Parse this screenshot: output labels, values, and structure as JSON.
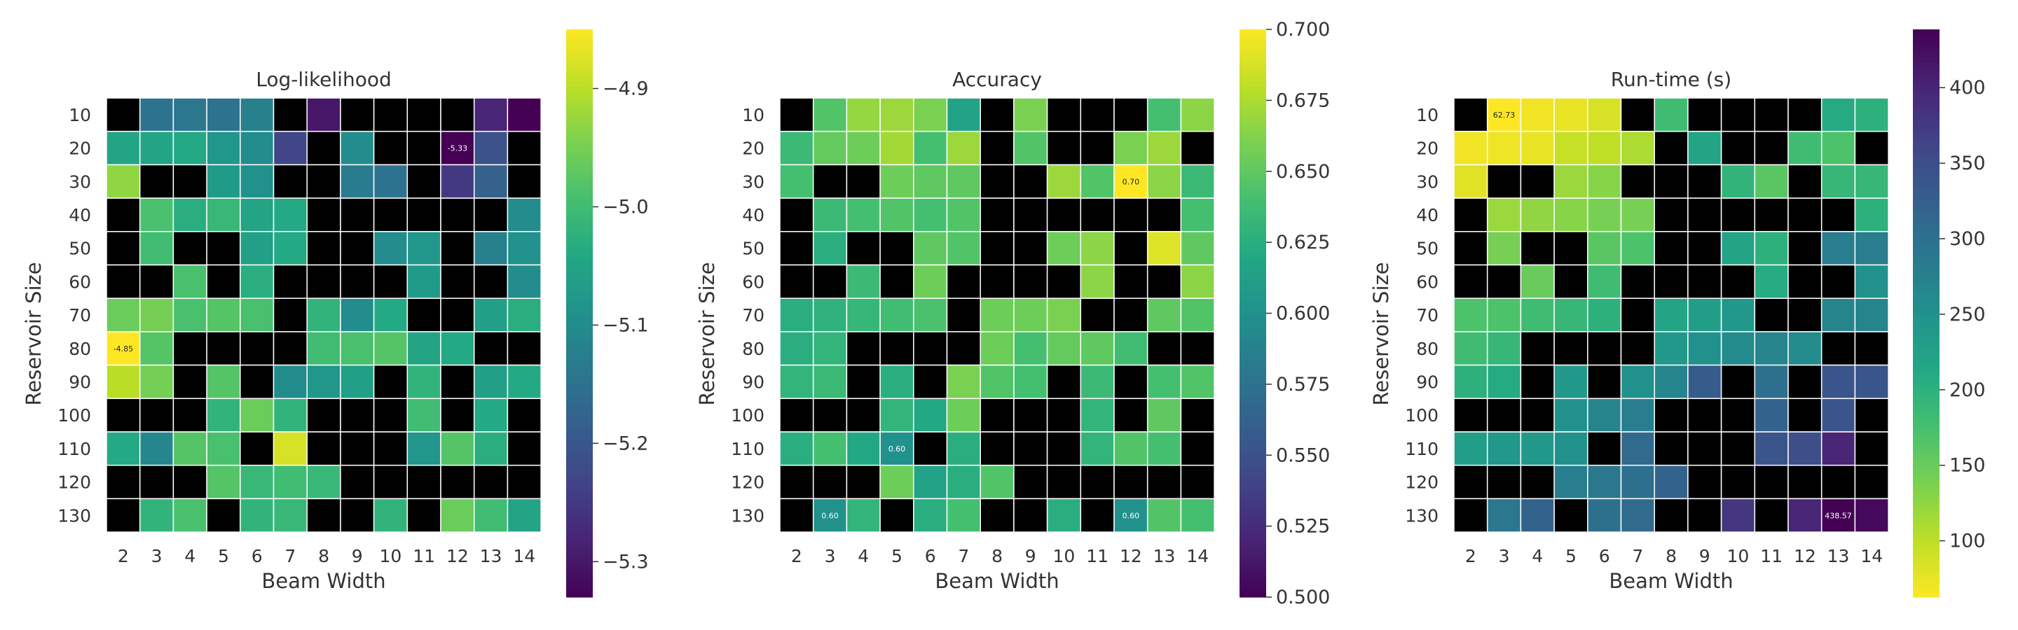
{
  "colors": {
    "missing": "#000000",
    "grid": "#ffffff",
    "viridis": [
      "#440154",
      "#482475",
      "#414487",
      "#355f8d",
      "#2a788e",
      "#21918c",
      "#22a884",
      "#44bf70",
      "#7ad151",
      "#bddf26",
      "#fde725"
    ]
  },
  "chart_data": [
    {
      "type": "heatmap",
      "title": "Log-likelihood",
      "xlabel": "Beam Width",
      "ylabel": "Reservoir Size",
      "x_categories": [
        "2",
        "3",
        "4",
        "5",
        "6",
        "7",
        "8",
        "9",
        "10",
        "11",
        "12",
        "13",
        "14"
      ],
      "y_categories": [
        "10",
        "20",
        "30",
        "40",
        "50",
        "60",
        "70",
        "80",
        "90",
        "100",
        "110",
        "120",
        "130"
      ],
      "colorbar": {
        "min": -5.33,
        "max": -4.85,
        "ticks": [
          -4.9,
          -5.0,
          -5.1,
          -5.2,
          -5.3
        ],
        "tick_labels": [
          "−4.9",
          "−5.0",
          "−5.1",
          "−5.2",
          "−5.3"
        ],
        "reversed": false
      },
      "values": [
        [
          null,
          -5.15,
          -5.14,
          -5.15,
          -5.12,
          null,
          -5.3,
          null,
          null,
          null,
          null,
          -5.28,
          -5.33
        ],
        [
          -5.05,
          -5.05,
          -5.04,
          -5.08,
          -5.1,
          -5.23,
          null,
          -5.1,
          null,
          null,
          -5.33,
          -5.21,
          null
        ],
        [
          -4.93,
          null,
          null,
          -5.07,
          -5.09,
          null,
          null,
          -5.13,
          -5.15,
          null,
          -5.25,
          -5.18,
          null
        ],
        [
          null,
          -4.99,
          -5.03,
          -5.01,
          -5.05,
          -5.04,
          null,
          null,
          null,
          null,
          null,
          null,
          -5.1
        ],
        [
          null,
          -5.0,
          null,
          null,
          -5.06,
          -5.04,
          null,
          null,
          -5.1,
          -5.08,
          null,
          -5.12,
          -5.09
        ],
        [
          null,
          null,
          -4.99,
          null,
          -5.03,
          null,
          null,
          null,
          null,
          -5.07,
          null,
          null,
          -5.1
        ],
        [
          -4.96,
          -4.95,
          -4.99,
          -4.98,
          -4.99,
          null,
          -5.02,
          -5.1,
          -5.04,
          null,
          null,
          -5.06,
          -5.03
        ],
        [
          -4.85,
          -4.98,
          null,
          null,
          null,
          null,
          -5.0,
          -4.99,
          -4.98,
          -5.05,
          -5.04,
          null,
          null
        ],
        [
          -4.9,
          -4.95,
          null,
          -4.98,
          null,
          -5.1,
          -5.08,
          -5.06,
          null,
          -5.02,
          null,
          -5.06,
          -5.04
        ],
        [
          null,
          null,
          null,
          -5.02,
          -4.96,
          -5.02,
          null,
          null,
          null,
          -5.0,
          null,
          -5.04,
          null
        ],
        [
          -5.04,
          -5.11,
          -4.98,
          -4.99,
          null,
          -4.88,
          null,
          null,
          null,
          -5.08,
          -4.98,
          -5.03,
          null
        ],
        [
          null,
          null,
          null,
          -4.98,
          -5.01,
          -5.0,
          -5.01,
          null,
          null,
          null,
          null,
          null,
          null
        ],
        [
          null,
          -5.02,
          -4.99,
          null,
          -5.02,
          -5.01,
          null,
          null,
          -5.02,
          null,
          -4.96,
          -5.0,
          -5.05
        ]
      ],
      "annotations": [
        {
          "row": 1,
          "col": 10,
          "text": "-5.33"
        },
        {
          "row": 7,
          "col": 0,
          "text": "-4.85"
        }
      ]
    },
    {
      "type": "heatmap",
      "title": "Accuracy",
      "xlabel": "Beam Width",
      "ylabel": "Reservoir Size",
      "x_categories": [
        "2",
        "3",
        "4",
        "5",
        "6",
        "7",
        "8",
        "9",
        "10",
        "11",
        "12",
        "13",
        "14"
      ],
      "y_categories": [
        "10",
        "20",
        "30",
        "40",
        "50",
        "60",
        "70",
        "80",
        "90",
        "100",
        "110",
        "120",
        "130"
      ],
      "colorbar": {
        "min": 0.5,
        "max": 0.7,
        "ticks": [
          0.7,
          0.675,
          0.65,
          0.625,
          0.6,
          0.575,
          0.55,
          0.525,
          0.5
        ],
        "tick_labels": [
          "0.700",
          "0.675",
          "0.650",
          "0.625",
          "0.600",
          "0.575",
          "0.550",
          "0.525",
          "0.500"
        ],
        "reversed": false
      },
      "values": [
        [
          null,
          0.645,
          0.668,
          0.67,
          0.66,
          0.615,
          null,
          0.66,
          null,
          null,
          null,
          0.64,
          0.665
        ],
        [
          0.635,
          0.652,
          0.655,
          0.672,
          0.64,
          0.67,
          null,
          0.645,
          null,
          null,
          0.66,
          0.67,
          null
        ],
        [
          0.64,
          null,
          null,
          0.655,
          0.65,
          0.65,
          null,
          null,
          0.67,
          0.645,
          0.7,
          0.665,
          0.635
        ],
        [
          null,
          0.635,
          0.64,
          0.645,
          0.64,
          0.645,
          null,
          null,
          null,
          null,
          null,
          null,
          0.64
        ],
        [
          null,
          0.625,
          null,
          null,
          0.65,
          0.645,
          null,
          null,
          0.655,
          0.665,
          null,
          0.69,
          0.65
        ],
        [
          null,
          null,
          0.635,
          null,
          0.655,
          null,
          null,
          null,
          null,
          0.665,
          null,
          null,
          0.665
        ],
        [
          0.625,
          0.628,
          0.632,
          0.638,
          0.642,
          null,
          0.655,
          0.655,
          0.66,
          null,
          null,
          0.65,
          0.645
        ],
        [
          0.625,
          0.63,
          null,
          null,
          null,
          null,
          0.655,
          0.64,
          0.652,
          0.65,
          0.638,
          null,
          null
        ],
        [
          0.63,
          0.635,
          null,
          0.625,
          null,
          0.66,
          0.645,
          0.64,
          null,
          0.635,
          null,
          0.64,
          0.645
        ],
        [
          null,
          null,
          null,
          0.63,
          0.62,
          0.655,
          null,
          null,
          null,
          0.63,
          null,
          0.65,
          null
        ],
        [
          0.625,
          0.64,
          0.62,
          0.6,
          null,
          0.625,
          null,
          null,
          null,
          0.63,
          0.645,
          0.64,
          null
        ],
        [
          null,
          null,
          null,
          0.655,
          0.615,
          0.625,
          0.645,
          null,
          null,
          null,
          null,
          null,
          null
        ],
        [
          null,
          0.6,
          0.63,
          null,
          0.625,
          0.64,
          null,
          null,
          0.625,
          null,
          0.6,
          0.645,
          0.64
        ]
      ],
      "annotations": [
        {
          "row": 2,
          "col": 10,
          "text": "0.70"
        },
        {
          "row": 10,
          "col": 3,
          "text": "0.60"
        },
        {
          "row": 12,
          "col": 1,
          "text": "0.60"
        },
        {
          "row": 12,
          "col": 10,
          "text": "0.60"
        }
      ]
    },
    {
      "type": "heatmap",
      "title": "Run-time (s)",
      "xlabel": "Beam Width",
      "ylabel": "Reservoir Size",
      "x_categories": [
        "2",
        "3",
        "4",
        "5",
        "6",
        "7",
        "8",
        "9",
        "10",
        "11",
        "12",
        "13",
        "14"
      ],
      "y_categories": [
        "10",
        "20",
        "30",
        "40",
        "50",
        "60",
        "70",
        "80",
        "90",
        "100",
        "110",
        "120",
        "130"
      ],
      "colorbar": {
        "min": 62.73,
        "max": 438.57,
        "ticks": [
          400,
          350,
          300,
          250,
          200,
          150,
          100
        ],
        "tick_labels": [
          "400",
          "350",
          "300",
          "250",
          "200",
          "150",
          "100"
        ],
        "reversed": true
      },
      "values": [
        [
          null,
          62.73,
          70,
          75,
          85,
          null,
          180,
          null,
          null,
          null,
          null,
          210,
          200
        ],
        [
          70,
          72,
          75,
          95,
          100,
          110,
          null,
          220,
          null,
          null,
          180,
          170,
          null
        ],
        [
          80,
          null,
          null,
          120,
          130,
          null,
          null,
          null,
          195,
          160,
          null,
          190,
          190
        ],
        [
          null,
          120,
          125,
          130,
          140,
          140,
          null,
          null,
          null,
          null,
          null,
          null,
          200
        ],
        [
          null,
          140,
          null,
          null,
          160,
          170,
          null,
          null,
          220,
          200,
          null,
          280,
          280
        ],
        [
          null,
          null,
          150,
          null,
          180,
          null,
          null,
          null,
          null,
          210,
          null,
          null,
          250
        ],
        [
          170,
          170,
          180,
          190,
          200,
          null,
          220,
          230,
          240,
          null,
          null,
          270,
          270
        ],
        [
          180,
          190,
          null,
          null,
          null,
          null,
          240,
          250,
          260,
          270,
          260,
          null,
          null
        ],
        [
          200,
          210,
          null,
          240,
          null,
          250,
          270,
          330,
          null,
          300,
          null,
          340,
          340
        ],
        [
          null,
          null,
          null,
          250,
          270,
          280,
          null,
          null,
          null,
          320,
          null,
          340,
          null
        ],
        [
          230,
          240,
          240,
          250,
          null,
          310,
          null,
          null,
          null,
          340,
          350,
          400,
          null
        ],
        [
          null,
          null,
          null,
          280,
          290,
          300,
          320,
          null,
          null,
          null,
          null,
          null,
          null
        ],
        [
          null,
          290,
          320,
          null,
          300,
          310,
          null,
          null,
          380,
          null,
          400,
          438.57,
          430
        ]
      ],
      "annotations": [
        {
          "row": 0,
          "col": 1,
          "text": "62.73"
        },
        {
          "row": 12,
          "col": 11,
          "text": "438.57"
        }
      ]
    }
  ]
}
